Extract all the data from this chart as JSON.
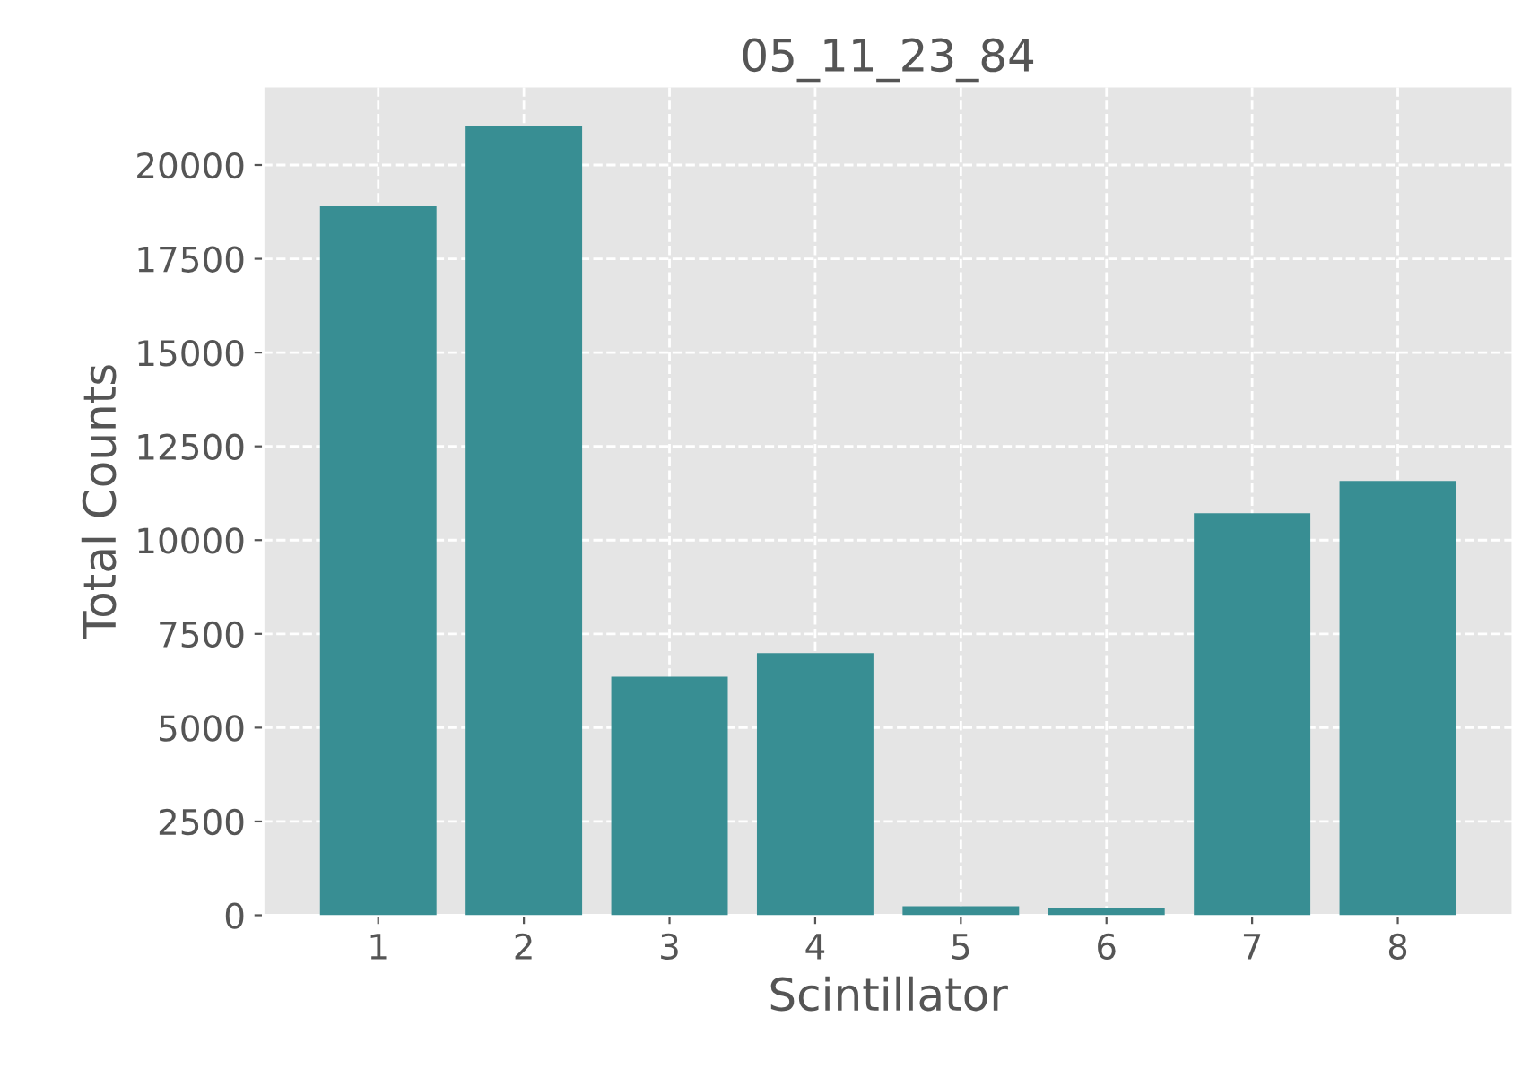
{
  "chart_data": {
    "type": "bar",
    "title": "05_11_23_84",
    "xlabel": "Scintillator",
    "ylabel": "Total Counts",
    "categories": [
      "1",
      "2",
      "3",
      "4",
      "5",
      "6",
      "7",
      "8"
    ],
    "values": [
      18900,
      21050,
      6360,
      6990,
      240,
      190,
      10720,
      11580
    ],
    "color": "#388e93",
    "ylim": [
      0,
      22100
    ],
    "yticks": [
      0,
      2500,
      5000,
      7500,
      10000,
      12500,
      15000,
      17500,
      20000
    ],
    "grid": true,
    "legend": false
  }
}
